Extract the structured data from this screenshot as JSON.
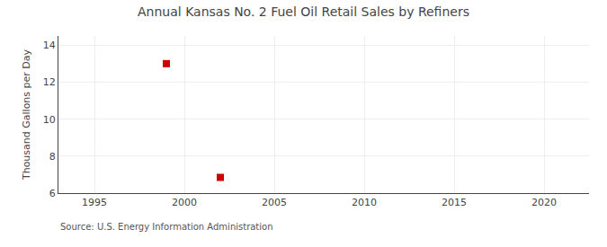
{
  "chart_data": {
    "type": "scatter",
    "title": "Annual Kansas No. 2 Fuel Oil Retail Sales by Refiners",
    "ylabel": "Thousand Gallons per Day",
    "annotations": [
      "Source: U.S. Energy Information Administration"
    ],
    "x": [
      1999,
      2002
    ],
    "values": [
      13.0,
      6.85
    ],
    "color": "#cc0000",
    "marker": "square",
    "xlim": [
      1993,
      2022.5
    ],
    "ylim": [
      6,
      14.5
    ],
    "xticks": [
      1995,
      2000,
      2005,
      2010,
      2015,
      2020
    ],
    "yticks": [
      6,
      8,
      10,
      12,
      14
    ],
    "grid": true
  }
}
